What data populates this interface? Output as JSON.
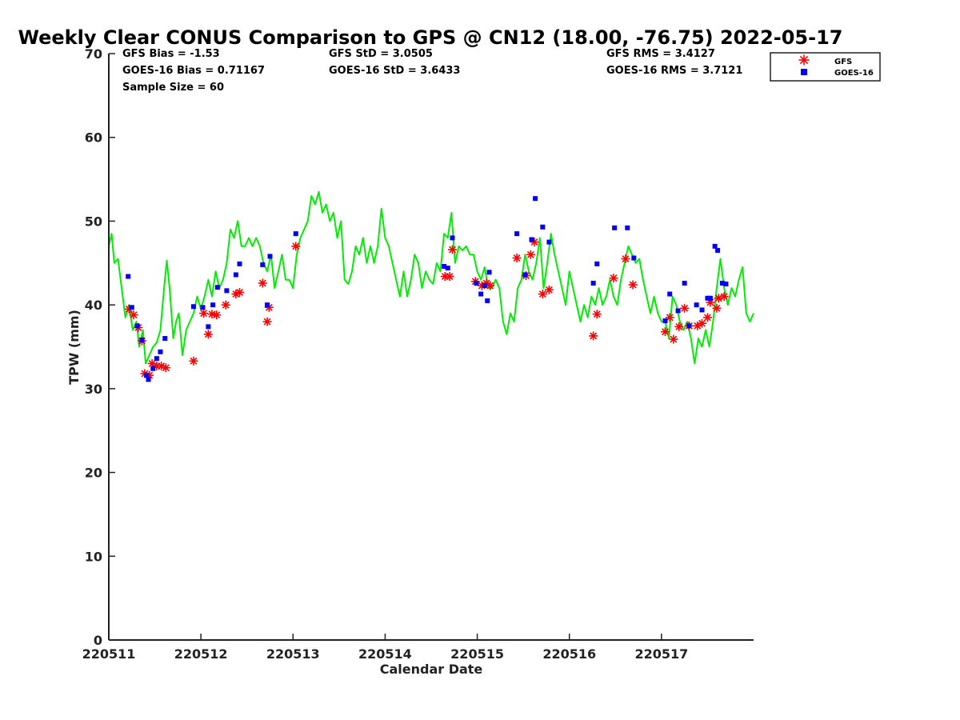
{
  "chart_data": {
    "type": "line",
    "title": "Weekly Clear CONUS Comparison to GPS @ CN12 (18.00, -76.75) 2022-05-17",
    "xlabel": "Calendar Date",
    "ylabel": "TPW (mm)",
    "xlim": [
      0,
      7
    ],
    "ylim": [
      0,
      70
    ],
    "x_ticks": [
      {
        "value": 0,
        "label": "220511"
      },
      {
        "value": 1,
        "label": "220512"
      },
      {
        "value": 2,
        "label": "220513"
      },
      {
        "value": 3,
        "label": "220514"
      },
      {
        "value": 4,
        "label": "220515"
      },
      {
        "value": 5,
        "label": "220516"
      },
      {
        "value": 6,
        "label": "220517"
      }
    ],
    "y_ticks": [
      0,
      10,
      20,
      30,
      40,
      50,
      60,
      70
    ],
    "stats": {
      "gfs_bias": "GFS Bias = -1.53",
      "goes_bias": "GOES-16 Bias = 0.71167",
      "sample_size": "Sample Size = 60",
      "gfs_std": "GFS StD = 3.0505",
      "goes_std": "GOES-16 StD = 3.6433",
      "gfs_rms": "GFS RMS = 3.4127",
      "goes_rms": "GOES-16 RMS = 3.7121"
    },
    "legend": {
      "position": "top-right, outside axes",
      "entries": [
        {
          "label": "GFS",
          "color": "#ff0000",
          "marker": "asterisk"
        },
        {
          "label": "GOES-16",
          "color": "#0000ff",
          "marker": "square"
        }
      ]
    },
    "series": [
      {
        "color": "#00ee00",
        "style": "line",
        "points": [
          [
            0.0,
            47
          ],
          [
            0.03,
            48.5
          ],
          [
            0.06,
            45
          ],
          [
            0.1,
            45.5
          ],
          [
            0.14,
            42
          ],
          [
            0.18,
            38.5
          ],
          [
            0.22,
            40
          ],
          [
            0.26,
            37
          ],
          [
            0.3,
            38
          ],
          [
            0.33,
            35
          ],
          [
            0.37,
            37
          ],
          [
            0.4,
            33
          ],
          [
            0.44,
            34
          ],
          [
            0.48,
            35
          ],
          [
            0.52,
            35.5
          ],
          [
            0.56,
            37
          ],
          [
            0.6,
            42
          ],
          [
            0.63,
            45.3
          ],
          [
            0.66,
            42
          ],
          [
            0.7,
            36
          ],
          [
            0.73,
            38
          ],
          [
            0.76,
            39
          ],
          [
            0.8,
            34
          ],
          [
            0.84,
            37
          ],
          [
            0.88,
            38
          ],
          [
            0.92,
            39
          ],
          [
            0.96,
            41
          ],
          [
            1.0,
            39.5
          ],
          [
            1.04,
            41
          ],
          [
            1.08,
            43
          ],
          [
            1.12,
            41
          ],
          [
            1.16,
            44
          ],
          [
            1.2,
            42
          ],
          [
            1.24,
            43
          ],
          [
            1.28,
            45
          ],
          [
            1.32,
            49
          ],
          [
            1.36,
            48
          ],
          [
            1.4,
            50
          ],
          [
            1.44,
            47
          ],
          [
            1.48,
            47
          ],
          [
            1.52,
            48
          ],
          [
            1.56,
            47
          ],
          [
            1.6,
            48
          ],
          [
            1.64,
            47
          ],
          [
            1.68,
            45
          ],
          [
            1.72,
            44
          ],
          [
            1.76,
            46
          ],
          [
            1.8,
            42
          ],
          [
            1.84,
            44
          ],
          [
            1.88,
            46
          ],
          [
            1.92,
            43
          ],
          [
            1.96,
            43
          ],
          [
            2.0,
            42
          ],
          [
            2.04,
            46
          ],
          [
            2.08,
            48
          ],
          [
            2.12,
            49
          ],
          [
            2.16,
            50
          ],
          [
            2.2,
            53
          ],
          [
            2.24,
            52
          ],
          [
            2.28,
            53.5
          ],
          [
            2.32,
            51
          ],
          [
            2.36,
            52
          ],
          [
            2.4,
            50
          ],
          [
            2.44,
            51
          ],
          [
            2.48,
            48
          ],
          [
            2.52,
            50
          ],
          [
            2.56,
            43
          ],
          [
            2.6,
            42.5
          ],
          [
            2.64,
            44
          ],
          [
            2.68,
            47
          ],
          [
            2.72,
            46
          ],
          [
            2.76,
            48
          ],
          [
            2.8,
            45
          ],
          [
            2.84,
            47
          ],
          [
            2.88,
            45
          ],
          [
            2.92,
            47
          ],
          [
            2.96,
            51.5
          ],
          [
            3.0,
            48
          ],
          [
            3.04,
            47
          ],
          [
            3.08,
            45
          ],
          [
            3.12,
            43
          ],
          [
            3.16,
            41
          ],
          [
            3.2,
            44
          ],
          [
            3.24,
            41
          ],
          [
            3.28,
            43
          ],
          [
            3.32,
            46
          ],
          [
            3.36,
            45
          ],
          [
            3.4,
            42
          ],
          [
            3.44,
            44
          ],
          [
            3.48,
            43
          ],
          [
            3.52,
            42.5
          ],
          [
            3.56,
            45
          ],
          [
            3.6,
            44
          ],
          [
            3.64,
            48.5
          ],
          [
            3.68,
            48
          ],
          [
            3.72,
            51
          ],
          [
            3.76,
            45
          ],
          [
            3.8,
            47
          ],
          [
            3.84,
            46.5
          ],
          [
            3.88,
            47
          ],
          [
            3.92,
            46
          ],
          [
            3.96,
            46
          ],
          [
            4.0,
            44
          ],
          [
            4.04,
            43
          ],
          [
            4.08,
            44.5
          ],
          [
            4.12,
            42
          ],
          [
            4.16,
            42
          ],
          [
            4.2,
            43
          ],
          [
            4.24,
            42
          ],
          [
            4.28,
            38
          ],
          [
            4.32,
            36.5
          ],
          [
            4.36,
            39
          ],
          [
            4.4,
            38
          ],
          [
            4.44,
            42
          ],
          [
            4.48,
            43
          ],
          [
            4.52,
            46
          ],
          [
            4.56,
            44
          ],
          [
            4.6,
            43
          ],
          [
            4.64,
            45
          ],
          [
            4.68,
            48
          ],
          [
            4.72,
            42
          ],
          [
            4.76,
            45
          ],
          [
            4.8,
            48.5
          ],
          [
            4.84,
            46
          ],
          [
            4.88,
            44
          ],
          [
            4.92,
            42
          ],
          [
            4.96,
            40
          ],
          [
            5.0,
            44
          ],
          [
            5.04,
            42
          ],
          [
            5.08,
            40
          ],
          [
            5.12,
            38
          ],
          [
            5.16,
            40
          ],
          [
            5.2,
            38.5
          ],
          [
            5.24,
            41
          ],
          [
            5.28,
            40
          ],
          [
            5.32,
            42
          ],
          [
            5.36,
            40
          ],
          [
            5.4,
            41
          ],
          [
            5.44,
            43
          ],
          [
            5.48,
            41
          ],
          [
            5.52,
            40
          ],
          [
            5.56,
            43
          ],
          [
            5.6,
            45
          ],
          [
            5.64,
            47
          ],
          [
            5.68,
            46
          ],
          [
            5.72,
            45
          ],
          [
            5.76,
            45.5
          ],
          [
            5.8,
            43
          ],
          [
            5.84,
            41
          ],
          [
            5.88,
            39
          ],
          [
            5.92,
            41
          ],
          [
            5.96,
            39
          ],
          [
            6.0,
            38
          ],
          [
            6.04,
            38
          ],
          [
            6.08,
            36
          ],
          [
            6.12,
            41
          ],
          [
            6.16,
            40
          ],
          [
            6.2,
            38
          ],
          [
            6.24,
            37
          ],
          [
            6.28,
            38
          ],
          [
            6.32,
            36
          ],
          [
            6.36,
            33
          ],
          [
            6.4,
            36
          ],
          [
            6.44,
            35
          ],
          [
            6.48,
            37
          ],
          [
            6.52,
            35
          ],
          [
            6.56,
            38
          ],
          [
            6.6,
            42
          ],
          [
            6.64,
            45.5
          ],
          [
            6.68,
            42
          ],
          [
            6.72,
            40
          ],
          [
            6.76,
            42
          ],
          [
            6.8,
            41
          ],
          [
            6.84,
            43
          ],
          [
            6.88,
            44.5
          ],
          [
            6.92,
            39
          ],
          [
            6.96,
            38
          ],
          [
            7.0,
            39
          ]
        ]
      },
      {
        "name": "GFS",
        "color": "#ff0000",
        "marker": "asterisk",
        "points": [
          [
            0.22,
            39.5
          ],
          [
            0.27,
            38.8
          ],
          [
            0.32,
            37.3
          ],
          [
            0.36,
            35.7
          ],
          [
            0.39,
            31.8
          ],
          [
            0.44,
            31.6
          ],
          [
            0.47,
            33
          ],
          [
            0.52,
            32.7
          ],
          [
            0.57,
            32.7
          ],
          [
            0.62,
            32.5
          ],
          [
            0.92,
            33.3
          ],
          [
            1.03,
            39
          ],
          [
            1.08,
            36.5
          ],
          [
            1.12,
            38.9
          ],
          [
            1.17,
            38.8
          ],
          [
            1.27,
            40
          ],
          [
            1.38,
            41.3
          ],
          [
            1.42,
            41.5
          ],
          [
            1.67,
            42.6
          ],
          [
            1.72,
            38
          ],
          [
            1.74,
            39.7
          ],
          [
            2.03,
            47
          ],
          [
            3.65,
            43.4
          ],
          [
            3.7,
            43.4
          ],
          [
            3.73,
            46.6
          ],
          [
            3.98,
            42.8
          ],
          [
            4.05,
            42.3
          ],
          [
            4.1,
            42.6
          ],
          [
            4.14,
            42.3
          ],
          [
            4.43,
            45.6
          ],
          [
            4.53,
            43.5
          ],
          [
            4.58,
            46
          ],
          [
            4.62,
            47.5
          ],
          [
            4.71,
            41.3
          ],
          [
            4.78,
            41.8
          ],
          [
            5.26,
            36.3
          ],
          [
            5.3,
            38.9
          ],
          [
            5.48,
            43.2
          ],
          [
            5.61,
            45.5
          ],
          [
            5.69,
            42.4
          ],
          [
            6.04,
            36.8
          ],
          [
            6.09,
            38.5
          ],
          [
            6.13,
            35.9
          ],
          [
            6.19,
            37.4
          ],
          [
            6.25,
            39.6
          ],
          [
            6.3,
            37.5
          ],
          [
            6.39,
            37.5
          ],
          [
            6.44,
            37.8
          ],
          [
            6.5,
            38.5
          ],
          [
            6.53,
            40.3
          ],
          [
            6.6,
            39.6
          ],
          [
            6.62,
            40.8
          ],
          [
            6.68,
            41
          ]
        ]
      },
      {
        "name": "GOES-16",
        "color": "#0000ff",
        "marker": "square",
        "points": [
          [
            0.21,
            43.4
          ],
          [
            0.25,
            39.7
          ],
          [
            0.31,
            37.5
          ],
          [
            0.36,
            35.8
          ],
          [
            0.41,
            31.6
          ],
          [
            0.43,
            31.1
          ],
          [
            0.48,
            32.4
          ],
          [
            0.52,
            33.6
          ],
          [
            0.56,
            34.4
          ],
          [
            0.61,
            36
          ],
          [
            0.92,
            39.8
          ],
          [
            1.02,
            39.7
          ],
          [
            1.08,
            37.4
          ],
          [
            1.13,
            40
          ],
          [
            1.18,
            42.1
          ],
          [
            1.28,
            41.7
          ],
          [
            1.38,
            43.6
          ],
          [
            1.42,
            44.9
          ],
          [
            1.67,
            44.8
          ],
          [
            1.72,
            40
          ],
          [
            1.75,
            45.8
          ],
          [
            2.03,
            48.5
          ],
          [
            3.64,
            44.6
          ],
          [
            3.68,
            44.4
          ],
          [
            3.73,
            48
          ],
          [
            3.99,
            42.6
          ],
          [
            4.04,
            41.3
          ],
          [
            4.08,
            42.3
          ],
          [
            4.11,
            40.5
          ],
          [
            4.13,
            43.9
          ],
          [
            4.43,
            48.5
          ],
          [
            4.52,
            43.6
          ],
          [
            4.59,
            47.8
          ],
          [
            4.63,
            52.7
          ],
          [
            4.71,
            49.3
          ],
          [
            4.78,
            47.5
          ],
          [
            5.26,
            42.6
          ],
          [
            5.3,
            44.9
          ],
          [
            5.49,
            49.2
          ],
          [
            5.63,
            49.2
          ],
          [
            5.7,
            45.6
          ],
          [
            6.04,
            38.1
          ],
          [
            6.09,
            41.3
          ],
          [
            6.18,
            39.3
          ],
          [
            6.25,
            42.6
          ],
          [
            6.3,
            37.5
          ],
          [
            6.38,
            40
          ],
          [
            6.44,
            39.4
          ],
          [
            6.5,
            40.8
          ],
          [
            6.53,
            40.8
          ],
          [
            6.58,
            47
          ],
          [
            6.61,
            46.5
          ],
          [
            6.66,
            42.6
          ],
          [
            6.7,
            42.5
          ]
        ]
      }
    ]
  }
}
